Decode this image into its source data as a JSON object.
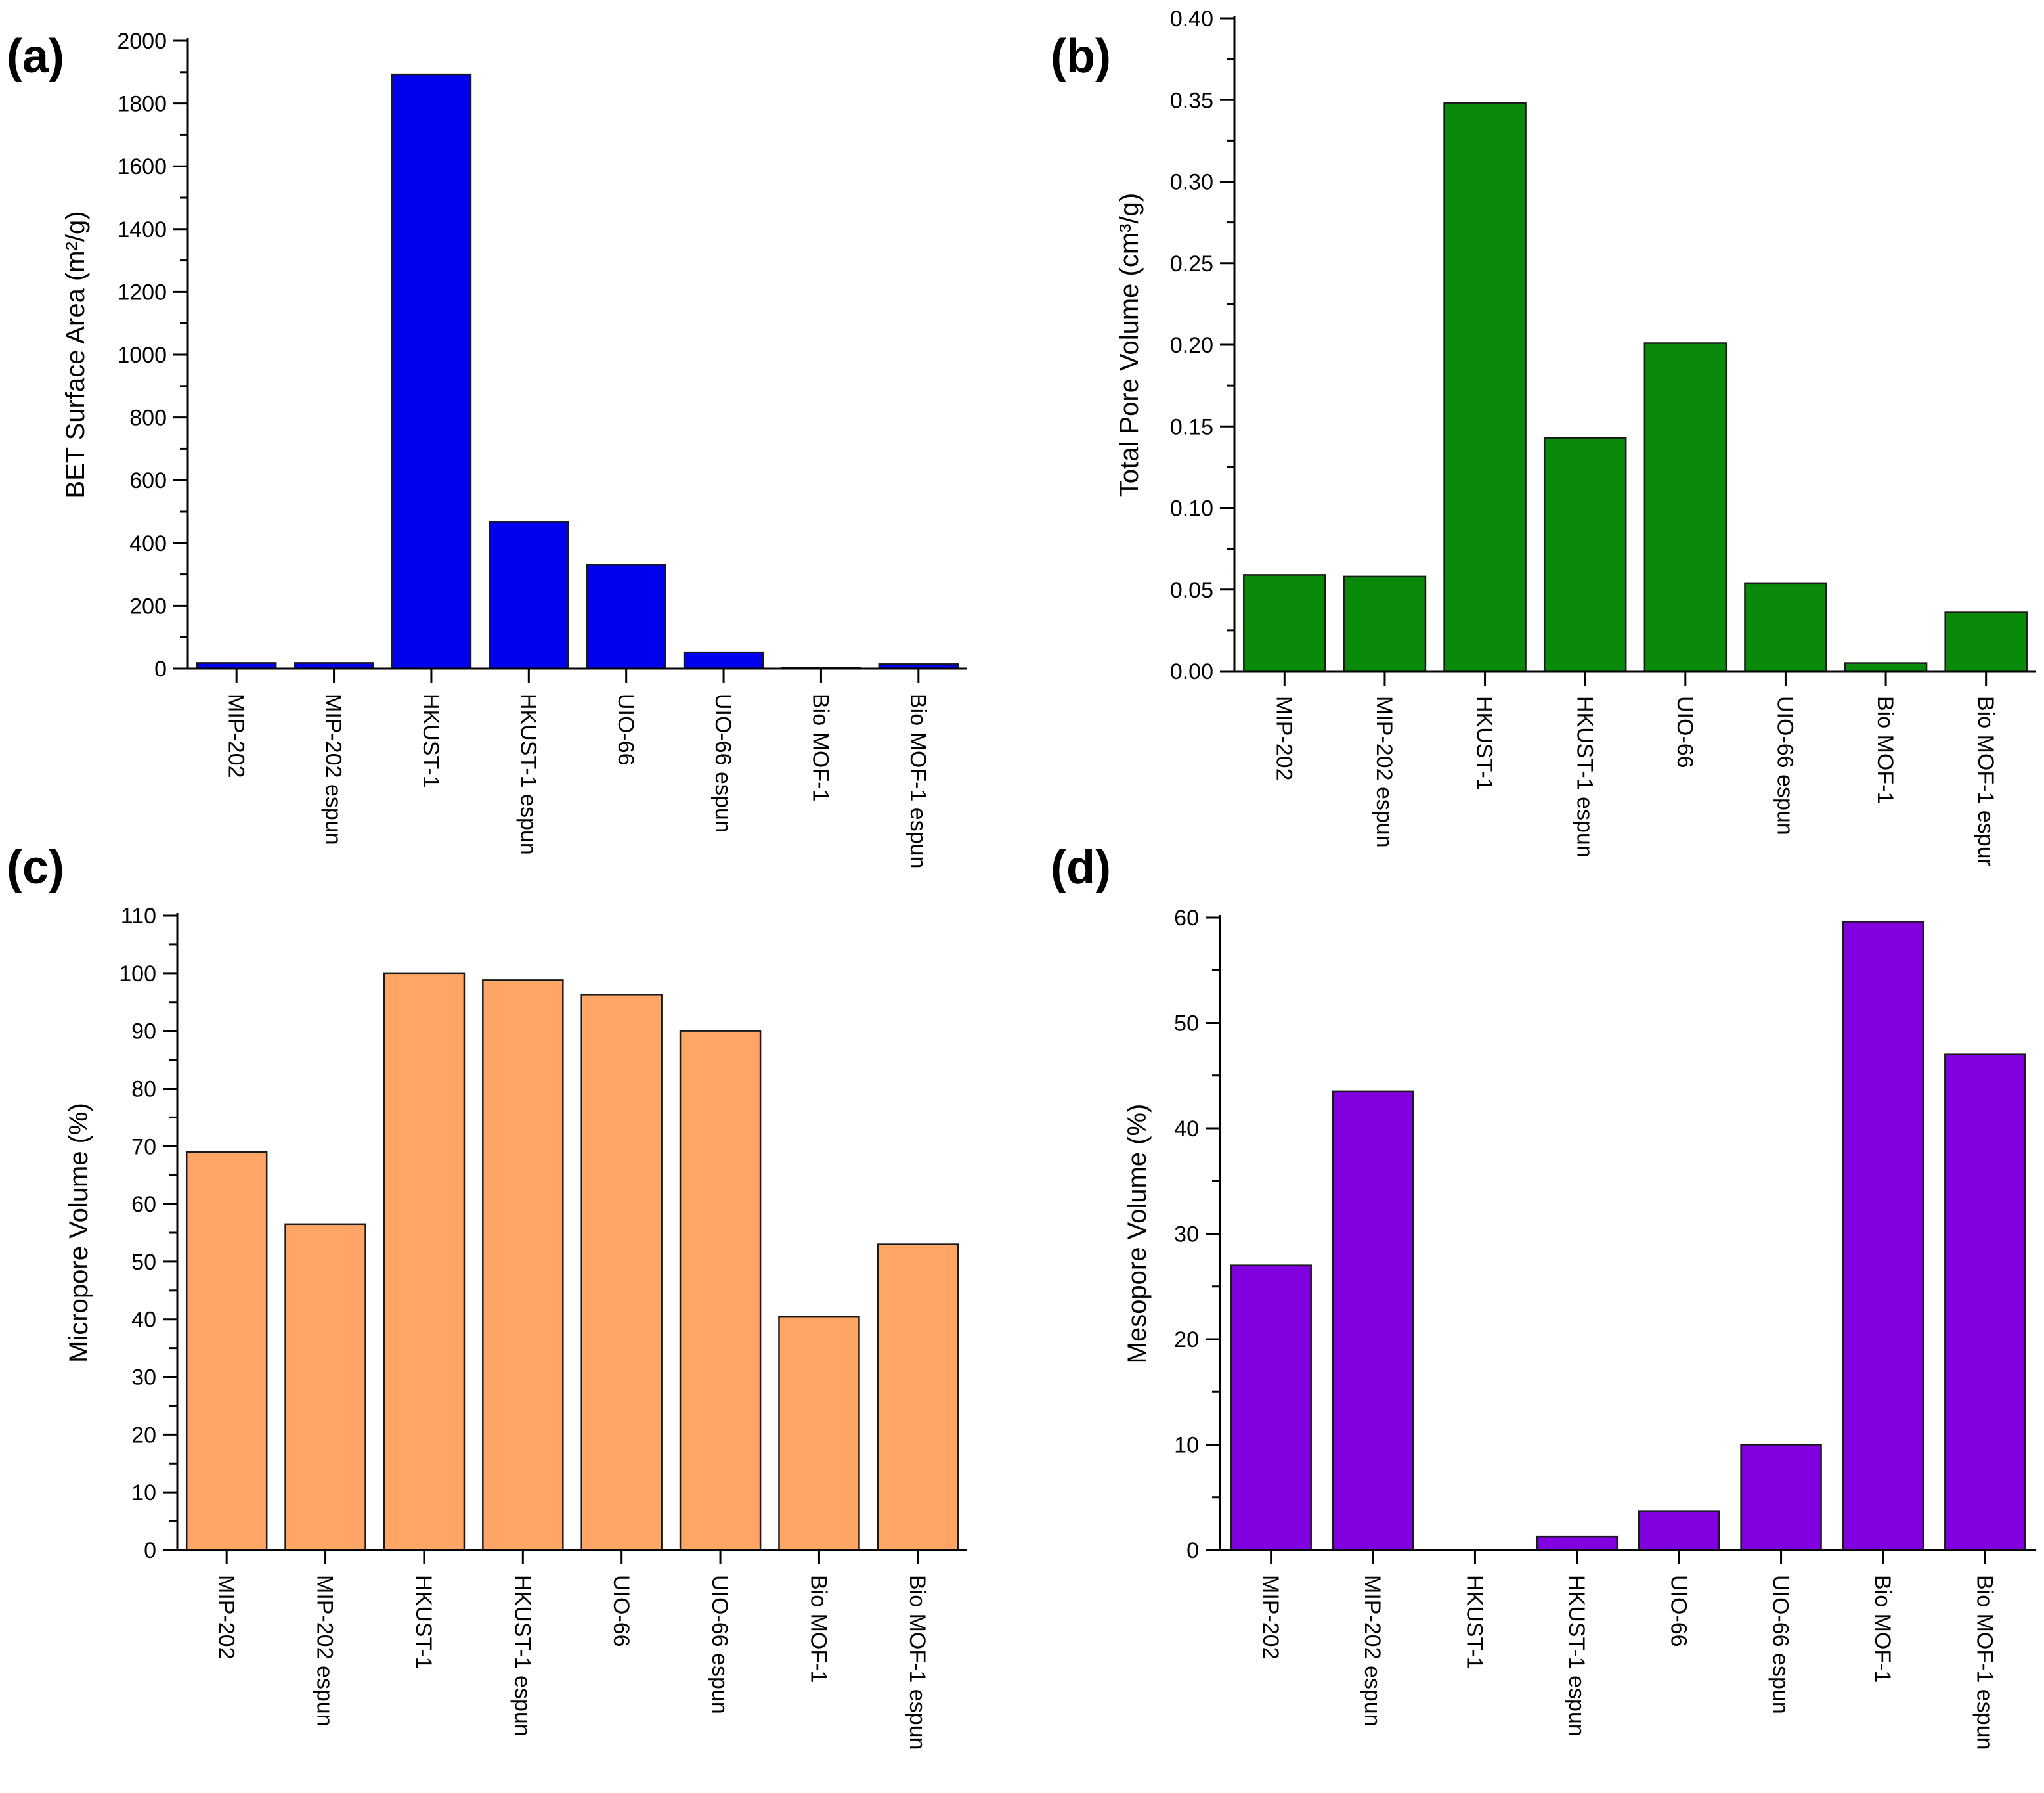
{
  "figure": {
    "panels": [
      "(a)",
      "(b)",
      "(c)",
      "(d)"
    ]
  },
  "chart_data": [
    {
      "type": "bar",
      "panel_label": "(a)",
      "title": "",
      "xlabel": "",
      "ylabel": "BET Surface Area (m²/g)",
      "categories": [
        "MIP-202",
        "MIP-202 espun",
        "HKUST-1",
        "HKUST-1 espun",
        "UIO-66",
        "UIO-66 espun",
        "Bio MOF-1",
        "Bio MOF-1 espun"
      ],
      "values": [
        18,
        18,
        1893,
        468,
        330,
        52,
        2,
        14
      ],
      "ylim": [
        0,
        2000
      ],
      "yticks": [
        0,
        200,
        400,
        600,
        800,
        1000,
        1200,
        1400,
        1600,
        1800,
        2000
      ],
      "ytick_labels": [
        "0",
        "200",
        "400",
        "600",
        "800",
        "1000",
        "1200",
        "1400",
        "1600",
        "1800",
        "2000"
      ],
      "bar_color": "#0000ee",
      "grid": false
    },
    {
      "type": "bar",
      "panel_label": "(b)",
      "title": "",
      "xlabel": "",
      "ylabel": "Total Pore Volume (cm³/g)",
      "categories": [
        "MIP-202",
        "MIP-202 espun",
        "HKUST-1",
        "HKUST-1 espun",
        "UIO-66",
        "UIO-66 espun",
        "Bio MOF-1",
        "Bio MOF-1 espur"
      ],
      "values": [
        0.059,
        0.058,
        0.348,
        0.143,
        0.201,
        0.054,
        0.005,
        0.036
      ],
      "ylim": [
        0,
        0.4
      ],
      "yticks": [
        0,
        0.05,
        0.1,
        0.15,
        0.2,
        0.25,
        0.3,
        0.35,
        0.4
      ],
      "ytick_labels": [
        "0.00",
        "0.05",
        "0.10",
        "0.15",
        "0.20",
        "0.25",
        "0.30",
        "0.35",
        "0.40"
      ],
      "bar_color": "#0a8a0a",
      "grid": false
    },
    {
      "type": "bar",
      "panel_label": "(c)",
      "title": "",
      "xlabel": "",
      "ylabel": "Micropore Volume (%)",
      "categories": [
        "MIP-202",
        "MIP-202 espun",
        "HKUST-1",
        "HKUST-1 espun",
        "UIO-66",
        "UIO-66 espun",
        "Bio MOF-1",
        "Bio MOF-1 espun"
      ],
      "values": [
        69,
        56.5,
        100,
        98.8,
        96.3,
        90,
        40.4,
        53
      ],
      "ylim": [
        0,
        110
      ],
      "yticks": [
        0,
        10,
        20,
        30,
        40,
        50,
        60,
        70,
        80,
        90,
        100,
        110
      ],
      "ytick_labels": [
        "0",
        "10",
        "20",
        "30",
        "40",
        "50",
        "60",
        "70",
        "80",
        "90",
        "100",
        "110"
      ],
      "bar_color": "#ffa566",
      "grid": false
    },
    {
      "type": "bar",
      "panel_label": "(d)",
      "title": "",
      "xlabel": "",
      "ylabel": "Mesopore Volume (%)",
      "categories": [
        "MIP-202",
        "MIP-202 espun",
        "HKUST-1",
        "HKUST-1 espun",
        "UIO-66",
        "UIO-66 espun",
        "Bio MOF-1",
        "Bio MOF-1 espun"
      ],
      "values": [
        27,
        43.5,
        0,
        1.3,
        3.7,
        10,
        59.6,
        47
      ],
      "ylim": [
        0,
        60
      ],
      "yticks": [
        0,
        10,
        20,
        30,
        40,
        50,
        60
      ],
      "ytick_labels": [
        "0",
        "10",
        "20",
        "30",
        "40",
        "50",
        "60"
      ],
      "bar_color": "#8000e0",
      "grid": false
    }
  ]
}
